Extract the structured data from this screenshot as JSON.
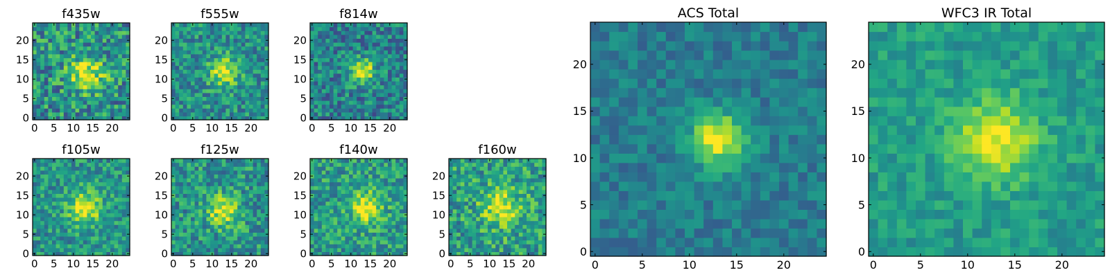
{
  "figure": {
    "colormap": "viridis",
    "panels": [
      {
        "id": "f435w",
        "title": "f435w",
        "xticks": [
          0,
          5,
          10,
          15,
          20
        ],
        "yticks": [
          0,
          5,
          10,
          15,
          20
        ],
        "grid_size": 25,
        "source": {
          "x": 13.5,
          "y": 11.5,
          "sigma": 3.2
        },
        "peak": 0.92,
        "noise": 0.46,
        "background": 0.5,
        "seed": 11
      },
      {
        "id": "f555w",
        "title": "f555w",
        "xticks": [
          0,
          5,
          10,
          15,
          20
        ],
        "yticks": [
          0,
          5,
          10,
          15,
          20
        ],
        "grid_size": 25,
        "source": {
          "x": 13,
          "y": 12,
          "sigma": 2.6
        },
        "peak": 0.95,
        "noise": 0.36,
        "background": 0.5,
        "seed": 23
      },
      {
        "id": "f814w",
        "title": "f814w",
        "xticks": [
          0,
          5,
          10,
          15,
          20
        ],
        "yticks": [
          0,
          5,
          10,
          15,
          20
        ],
        "grid_size": 25,
        "source": {
          "x": 13,
          "y": 12,
          "sigma": 2.2
        },
        "peak": 1.0,
        "noise": 0.38,
        "background": 0.44,
        "seed": 37
      },
      {
        "id": "f105w",
        "title": "f105w",
        "xticks": [
          0,
          5,
          10,
          15,
          20
        ],
        "yticks": [
          0,
          5,
          10,
          15,
          20
        ],
        "grid_size": 25,
        "source": {
          "x": 13,
          "y": 12,
          "sigma": 3.0
        },
        "peak": 0.95,
        "noise": 0.34,
        "background": 0.52,
        "seed": 41
      },
      {
        "id": "f125w",
        "title": "f125w",
        "xticks": [
          0,
          5,
          10,
          15,
          20
        ],
        "yticks": [
          0,
          5,
          10,
          15,
          20
        ],
        "grid_size": 25,
        "source": {
          "x": 13,
          "y": 11,
          "sigma": 2.8
        },
        "peak": 0.95,
        "noise": 0.38,
        "background": 0.52,
        "seed": 53
      },
      {
        "id": "f140w",
        "title": "f140w",
        "xticks": [
          0,
          5,
          10,
          15,
          20
        ],
        "yticks": [
          0,
          5,
          10,
          15,
          20
        ],
        "grid_size": 25,
        "source": {
          "x": 14,
          "y": 12,
          "sigma": 2.8
        },
        "peak": 1.0,
        "noise": 0.36,
        "background": 0.55,
        "seed": 67
      },
      {
        "id": "f160w",
        "title": "f160w",
        "xticks": [
          0,
          5,
          10,
          15,
          20
        ],
        "yticks": [
          0,
          5,
          10,
          15,
          20
        ],
        "grid_size": 25,
        "source": {
          "x": 13,
          "y": 12,
          "sigma": 3.4
        },
        "peak": 0.95,
        "noise": 0.4,
        "background": 0.56,
        "seed": 79
      },
      {
        "id": "acs-total",
        "title": "ACS Total",
        "xticks": [
          0,
          5,
          10,
          15,
          20
        ],
        "yticks": [
          0,
          5,
          10,
          15,
          20
        ],
        "grid_size": 25,
        "source": {
          "x": 13,
          "y": 12,
          "sigma": 2.0
        },
        "peak": 1.0,
        "noise": 0.2,
        "background": 0.42,
        "seed": 97
      },
      {
        "id": "wfc3-ir-total",
        "title": "WFC3 IR Total",
        "xticks": [
          0,
          5,
          10,
          15,
          20
        ],
        "yticks": [
          0,
          5,
          10,
          15,
          20
        ],
        "grid_size": 25,
        "source": {
          "x": 13,
          "y": 12,
          "sigma": 3.0
        },
        "peak": 1.0,
        "noise": 0.2,
        "background": 0.55,
        "seed": 131
      }
    ]
  }
}
